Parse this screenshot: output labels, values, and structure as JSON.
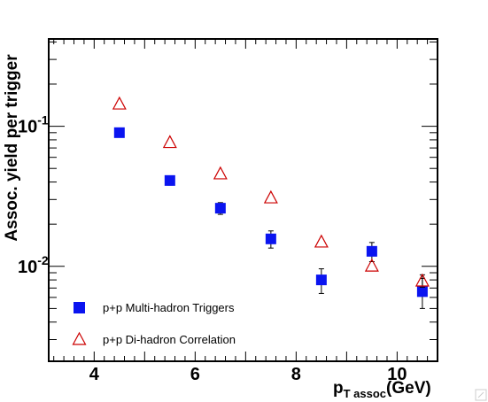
{
  "chart_data": {
    "type": "scatter",
    "xlabel": "p",
    "xlabel_sub": "T assoc",
    "xlabel_unit": "(GeV)",
    "ylabel": "Assoc. yield per trigger",
    "y_scale": "log",
    "xlim": [
      3.1,
      10.8
    ],
    "ylim": [
      0.0021,
      0.42
    ],
    "x_ticks": [
      {
        "value": 4,
        "label": "4"
      },
      {
        "value": 6,
        "label": "6"
      },
      {
        "value": 8,
        "label": "8"
      },
      {
        "value": 10,
        "label": "10"
      }
    ],
    "y_ticks": [
      {
        "value": 0.1,
        "mantissa": "10",
        "exp": "-1"
      },
      {
        "value": 0.01,
        "mantissa": "10",
        "exp": "-2"
      }
    ],
    "grid": false,
    "legend_position": "bottom-left",
    "series": [
      {
        "name": "p+p Multi-hadron Triggers",
        "marker": "filled-square",
        "color": "#0a14f0",
        "points": [
          {
            "x": 4.5,
            "y": 0.09,
            "err": 0.003
          },
          {
            "x": 5.5,
            "y": 0.041,
            "err": 0.003
          },
          {
            "x": 6.5,
            "y": 0.026,
            "err": 0.0025
          },
          {
            "x": 7.5,
            "y": 0.0157,
            "err": 0.0022
          },
          {
            "x": 8.5,
            "y": 0.008,
            "err": 0.0016
          },
          {
            "x": 9.5,
            "y": 0.0128,
            "err": 0.002
          },
          {
            "x": 10.5,
            "y": 0.0066,
            "err": 0.0016
          }
        ]
      },
      {
        "name": "p+p Di-hadron Correlation",
        "marker": "open-triangle",
        "color": "#cc0000",
        "points": [
          {
            "x": 4.5,
            "y": 0.145,
            "err": 0
          },
          {
            "x": 5.5,
            "y": 0.077,
            "err": 0
          },
          {
            "x": 6.5,
            "y": 0.046,
            "err": 0
          },
          {
            "x": 7.5,
            "y": 0.031,
            "err": 0
          },
          {
            "x": 8.5,
            "y": 0.015,
            "err": 0
          },
          {
            "x": 9.5,
            "y": 0.0101,
            "err": 0
          },
          {
            "x": 10.5,
            "y": 0.0079,
            "err": 0.0008
          }
        ]
      }
    ]
  }
}
